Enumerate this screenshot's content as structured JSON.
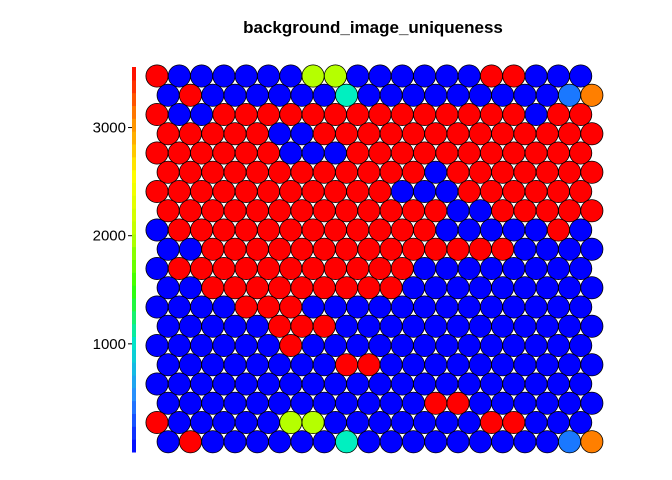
{
  "chart_data": {
    "type": "heatmap",
    "subtype": "som-hex-grid",
    "title": "background_image_uniqueness",
    "grid": {
      "columns": 20,
      "rows": 20,
      "hexagonal": true
    },
    "color_scale": {
      "min": 0,
      "max": 3560,
      "ticks": [
        1000,
        2000,
        3000
      ],
      "colors": [
        "#0000ff",
        "#2a8cff",
        "#00e5c8",
        "#31ff00",
        "#c0ff00",
        "#ffff00",
        "#ff9000",
        "#ff0000"
      ],
      "palette_glyphs": {
        "R": "#ff0000",
        "B": "#0000ff",
        "Y": "#b5ff00",
        "T": "#00f0c0",
        "L": "#1a78ff",
        "O": "#ff7f00"
      }
    },
    "rows_top_to_bottom": [
      "RBBBBBBYYBBBBBBRRBBB",
      "BRBBBBBBTBBBBBBBBBLO",
      "RBBRRRRRRRRRRRRRRBRR",
      "RRRRRBBRRRRRRRRRRRRR",
      "RRRRRRBBBRRRRRRRRRRR",
      "RRRRRRRRRRRRBRRRRRRR",
      "RRRRRRRRRRRBBBRRRRRR",
      "RRRRRRRRRRRRRBBRRRRR",
      "BRRRRRRRRRRRRBBBBBRB",
      "BBRRRRRRRRRRRRRRBBBB",
      "BRRRRRRRRRRRBBBBBBBB",
      "BBRRRRRRRRRBBBBBBBBB",
      "BBBBRRRBBBBBBBBBBBBB",
      "BBBBBRRRBBBBBBBBBBBB",
      "BBBBBBRBBBBBBBBBBBBB",
      "BBBBBBBBRRBBBBBBBBBB",
      "BBBBBBBBBBBBBBBBBBBB",
      "BBBBBBBBBBBBRRBBBBBB",
      "RBBBBBYYBBBBBBBRRBBB",
      "BRBBBBBBTBBBBBBBBBLO"
    ]
  }
}
